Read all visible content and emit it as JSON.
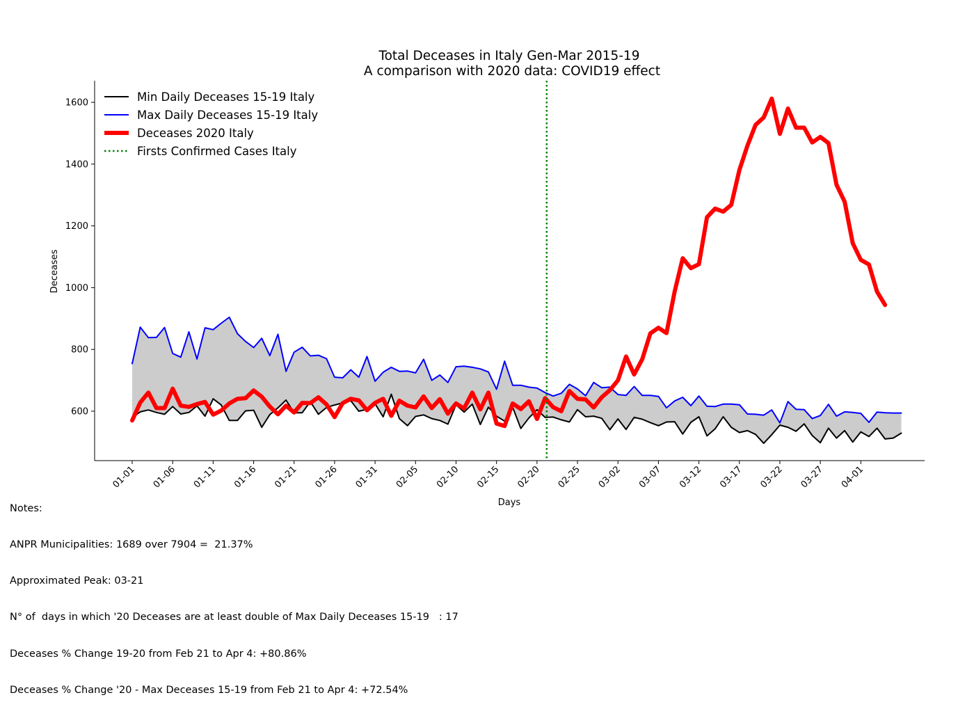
{
  "chart_data": {
    "type": "line",
    "title": "Total Deceases in Italy Gen-Mar 2015-19",
    "subtitle": "A comparison with 2020 data: COVID19 effect",
    "xlabel": "Days",
    "ylabel": "Deceases",
    "ylim": [
      440,
      1670
    ],
    "yticks": [
      600,
      800,
      1000,
      1200,
      1400,
      1600
    ],
    "grid": false,
    "legend_position": "top-left",
    "xtick_labels": [
      "01-01",
      "01-06",
      "01-11",
      "01-16",
      "01-21",
      "01-26",
      "01-31",
      "02-05",
      "02-10",
      "02-15",
      "02-20",
      "02-25",
      "03-02",
      "03-07",
      "03-12",
      "03-17",
      "03-22",
      "03-27",
      "04-01"
    ],
    "xtick_step": 5,
    "vline_index": 51.2,
    "series": [
      {
        "name": "Min Daily Deceases 15-19 Italy",
        "color": "#000000",
        "values": [
          580,
          598,
          604,
          596,
          590,
          615,
          591,
          596,
          617,
          584,
          640,
          620,
          570,
          570,
          601,
          603,
          548,
          589,
          611,
          636,
          595,
          595,
          631,
          590,
          612,
          620,
          627,
          634,
          600,
          606,
          624,
          582,
          655,
          576,
          553,
          583,
          588,
          576,
          570,
          558,
          621,
          597,
          623,
          557,
          613,
          584,
          568,
          613,
          544,
          578,
          605,
          580,
          581,
          572,
          565,
          605,
          582,
          584,
          577,
          540,
          575,
          541,
          580,
          574,
          563,
          553,
          565,
          566,
          526,
          564,
          582,
          520,
          543,
          582,
          548,
          531,
          537,
          525,
          496,
          524,
          555,
          548,
          535,
          559,
          521,
          498,
          545,
          513,
          537,
          500,
          533,
          518,
          545,
          510,
          513,
          529
        ],
        "fill_to_next": true
      },
      {
        "name": "Max Daily Deceases 15-19 Italy",
        "color": "#0000ff",
        "values": [
          754,
          872,
          838,
          839,
          871,
          787,
          775,
          857,
          769,
          870,
          864,
          885,
          904,
          851,
          826,
          806,
          836,
          780,
          849,
          729,
          791,
          807,
          779,
          781,
          770,
          710,
          708,
          734,
          710,
          777,
          697,
          726,
          742,
          729,
          730,
          724,
          768,
          700,
          717,
          693,
          744,
          746,
          742,
          737,
          727,
          671,
          762,
          684,
          684,
          678,
          675,
          660,
          649,
          658,
          687,
          672,
          650,
          693,
          676,
          678,
          654,
          651,
          680,
          651,
          651,
          648,
          611,
          633,
          645,
          618,
          649,
          616,
          615,
          623,
          623,
          621,
          591,
          590,
          587,
          604,
          562,
          631,
          606,
          605,
          576,
          586,
          622,
          584,
          598,
          596,
          593,
          564,
          597,
          595,
          594,
          594
        ]
      },
      {
        "name": "Deceases 2020 Italy",
        "color": "#ff0000",
        "values": [
          570,
          628,
          660,
          610,
          610,
          673,
          618,
          614,
          623,
          630,
          589,
          602,
          625,
          640,
          642,
          667,
          647,
          615,
          590,
          618,
          596,
          627,
          626,
          645,
          622,
          581,
          626,
          640,
          635,
          603,
          627,
          640,
          585,
          634,
          618,
          612,
          648,
          610,
          639,
          592,
          625,
          609,
          660,
          606,
          660,
          560,
          552,
          625,
          607,
          632,
          575,
          642,
          613,
          600,
          665,
          640,
          638,
          612,
          645,
          668,
          700,
          777,
          719,
          768,
          852,
          870,
          853,
          987,
          1095,
          1063,
          1076,
          1228,
          1256,
          1246,
          1268,
          1381,
          1460,
          1527,
          1551,
          1612,
          1498,
          1580,
          1518,
          1518,
          1470,
          1488,
          1468,
          1333,
          1278,
          1144,
          1090,
          1075,
          987,
          944
        ]
      },
      {
        "name": "Firsts Confirmed Cases Italy",
        "color": "#008000",
        "style": "dotted",
        "kind": "vline"
      }
    ]
  },
  "notes": {
    "header": "Notes:",
    "lines": [
      "ANPR Municipalities: 1689 over 7904 =  21.37%",
      "Approximated Peak: 03-21",
      "N° of  days in which '20 Deceases are at least double of Max Daily Deceases 15-19   : 17",
      "Deceases % Change 19-20 from Feb 21 to Apr 4: +80.86%",
      "Deceases % Change '20 - Max Deceases 15-19 from Feb 21 to Apr 4: +72.54%"
    ]
  }
}
